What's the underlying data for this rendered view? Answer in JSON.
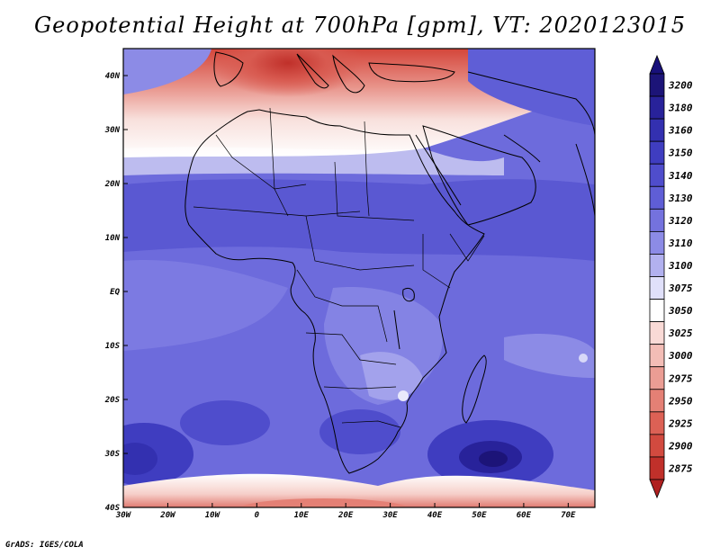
{
  "title": "Geopotential Height at 700hPa [gpm], VT: 2020123015",
  "credit": "GrADS: IGES/COLA",
  "map": {
    "lon_range": [
      -30,
      76
    ],
    "lat_range": [
      -40,
      45
    ],
    "lon_ticks": [
      {
        "value": -30,
        "label": "30W"
      },
      {
        "value": -20,
        "label": "20W"
      },
      {
        "value": -10,
        "label": "10W"
      },
      {
        "value": 0,
        "label": "0"
      },
      {
        "value": 10,
        "label": "10E"
      },
      {
        "value": 20,
        "label": "20E"
      },
      {
        "value": 30,
        "label": "30E"
      },
      {
        "value": 40,
        "label": "40E"
      },
      {
        "value": 50,
        "label": "50E"
      },
      {
        "value": 60,
        "label": "60E"
      },
      {
        "value": 70,
        "label": "70E"
      }
    ],
    "lat_ticks": [
      {
        "value": 40,
        "label": "40N"
      },
      {
        "value": 30,
        "label": "30N"
      },
      {
        "value": 20,
        "label": "20N"
      },
      {
        "value": 10,
        "label": "10N"
      },
      {
        "value": 0,
        "label": "EQ"
      },
      {
        "value": -10,
        "label": "10S"
      },
      {
        "value": -20,
        "label": "20S"
      },
      {
        "value": -30,
        "label": "30S"
      },
      {
        "value": -40,
        "label": "40S"
      }
    ]
  },
  "colorbar": {
    "levels": [
      {
        "label": "3200",
        "color": "#1c1478"
      },
      {
        "label": "3180",
        "color": "#28229a"
      },
      {
        "label": "3160",
        "color": "#3330b0"
      },
      {
        "label": "3150",
        "color": "#3f3dc0"
      },
      {
        "label": "3140",
        "color": "#4f4dcc"
      },
      {
        "label": "3130",
        "color": "#5f5ed6"
      },
      {
        "label": "3120",
        "color": "#7472de"
      },
      {
        "label": "3110",
        "color": "#8c8be6"
      },
      {
        "label": "3100",
        "color": "#b2b1ef"
      },
      {
        "label": "3075",
        "color": "#e0e0fa"
      },
      {
        "label": "3050",
        "color": "#ffffff"
      },
      {
        "label": "3025",
        "color": "#f9dad6"
      },
      {
        "label": "3000",
        "color": "#f3bdb6"
      },
      {
        "label": "2975",
        "color": "#eb9d94"
      },
      {
        "label": "2950",
        "color": "#e48075"
      },
      {
        "label": "2925",
        "color": "#dc6155"
      },
      {
        "label": "2900",
        "color": "#d24a3f"
      },
      {
        "label": "2875",
        "color": "#c0302a"
      }
    ],
    "top_color": "#18107a",
    "bottom_color": "#b02020"
  }
}
